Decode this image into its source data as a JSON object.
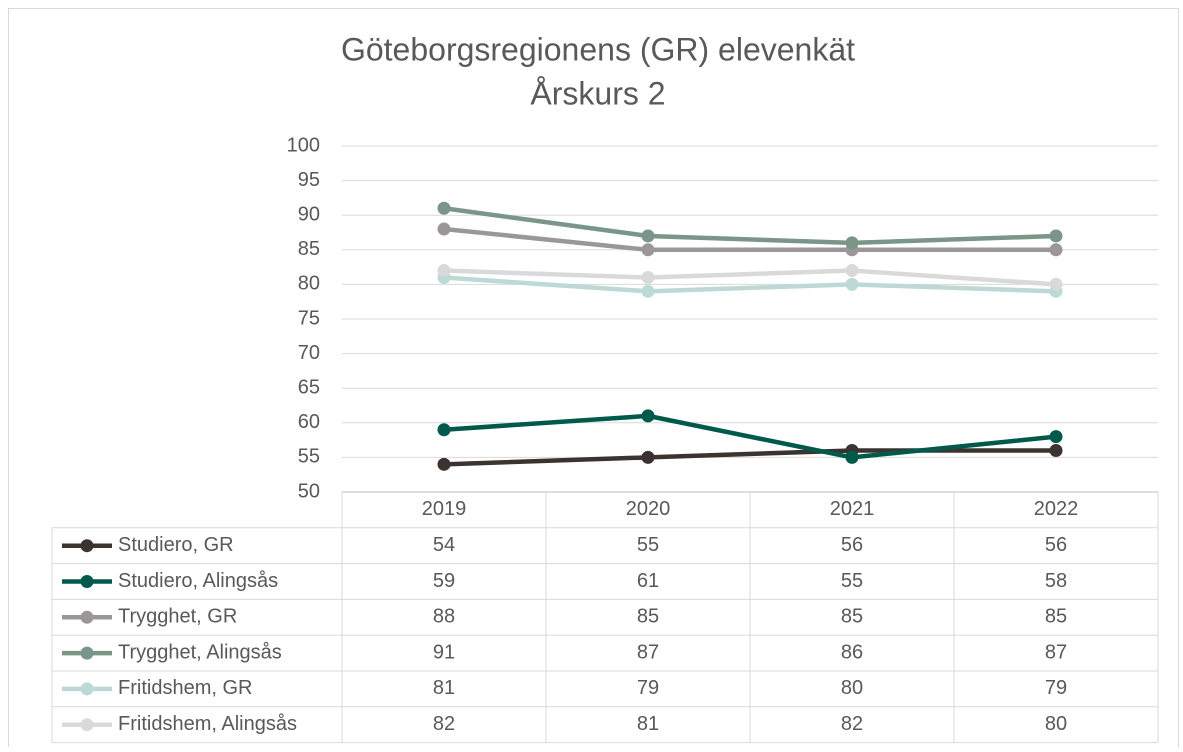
{
  "chart_data": {
    "type": "line",
    "title": "Göteborgsregionens (GR) elevenkät",
    "subtitle": "Årskurs 2",
    "categories": [
      "2019",
      "2020",
      "2021",
      "2022"
    ],
    "series": [
      {
        "name": "Studiero, GR",
        "color": "#3b3330",
        "values": [
          54,
          55,
          56,
          56
        ]
      },
      {
        "name": "Studiero, Alingsås",
        "color": "#005a4b",
        "values": [
          59,
          61,
          55,
          58
        ]
      },
      {
        "name": "Trygghet, GR",
        "color": "#9b9798",
        "values": [
          88,
          85,
          85,
          85
        ]
      },
      {
        "name": "Trygghet, Alingsås",
        "color": "#7a9688",
        "values": [
          91,
          87,
          86,
          87
        ]
      },
      {
        "name": "Fritidshem, GR",
        "color": "#bcd9d5",
        "values": [
          81,
          79,
          80,
          79
        ]
      },
      {
        "name": "Fritidshem, Alingsås",
        "color": "#d9d9d9",
        "values": [
          82,
          81,
          82,
          80
        ]
      }
    ],
    "ylim": [
      50,
      100
    ],
    "yticks": [
      50,
      55,
      60,
      65,
      70,
      75,
      80,
      85,
      90,
      95,
      100
    ],
    "grid": true,
    "data_table": true
  }
}
